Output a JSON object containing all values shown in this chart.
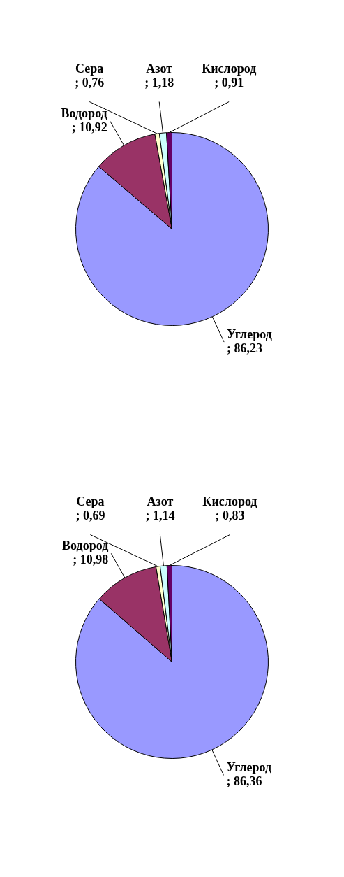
{
  "chart_data": [
    {
      "type": "pie",
      "categories": [
        "Углерод",
        "Водород",
        "Сера",
        "Азот",
        "Кислород"
      ],
      "values": [
        86.23,
        10.92,
        0.76,
        1.18,
        0.91
      ],
      "value_labels": [
        "; 86,23",
        "; 10,92",
        "; 0,76",
        "; 1,18",
        "; 0,91"
      ],
      "colors": [
        "#9999ff",
        "#993366",
        "#ffffcc",
        "#ccffff",
        "#660066"
      ]
    },
    {
      "type": "pie",
      "categories": [
        "Углерод",
        "Водород",
        "Сера",
        "Азот",
        "Кислород"
      ],
      "values": [
        86.36,
        10.98,
        0.69,
        1.14,
        0.83
      ],
      "value_labels": [
        "; 86,36",
        "; 10,98",
        "; 0,69",
        "; 1,14",
        "; 0,83"
      ],
      "colors": [
        "#9999ff",
        "#993366",
        "#ffffcc",
        "#ccffff",
        "#660066"
      ]
    }
  ]
}
